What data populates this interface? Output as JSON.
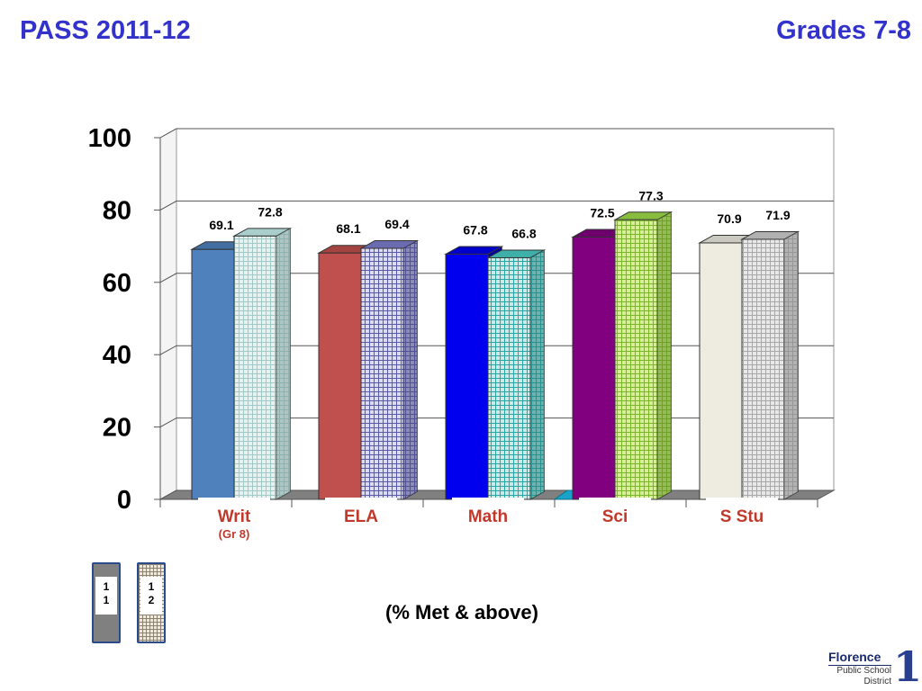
{
  "header": {
    "title_left": "PASS 2011-12",
    "title_right": "Grades 7-8"
  },
  "chart_data": {
    "type": "bar",
    "categories": [
      "Writ",
      "ELA",
      "Math",
      "Sci",
      "S Stu"
    ],
    "category_sublabels": [
      "(Gr 8)",
      "",
      "",
      "",
      ""
    ],
    "series": [
      {
        "name": "11",
        "values": [
          69.1,
          68.1,
          67.8,
          72.5,
          70.9
        ]
      },
      {
        "name": "12",
        "values": [
          72.8,
          69.4,
          66.8,
          77.3,
          71.9
        ]
      }
    ],
    "series_colors": [
      [
        "#4f81bd",
        "#c0504d",
        "#0000ee",
        "#800080",
        "#eeece1"
      ],
      [
        "#e6f2f0",
        "#dcdcf0",
        "#cfe8e8",
        "#d8ee9a",
        "#e8e8e8"
      ]
    ],
    "series_grid_colors": [
      "#9fc8c6",
      "#5a5aa8",
      "#2aa6a0",
      "#7ab52a",
      "#a8a8a8"
    ],
    "yticks": [
      0,
      20,
      40,
      60,
      80,
      100
    ],
    "ylim": [
      0,
      100
    ],
    "grid": true,
    "legend": "bottom-left",
    "category_label_color": "#c0392b"
  },
  "legend": {
    "items": [
      {
        "line1": "1",
        "line2": "1"
      },
      {
        "line1": "1",
        "line2": "2"
      }
    ]
  },
  "caption": "(% Met & above)",
  "logo": {
    "name": "Florence",
    "line1": "Public School",
    "line2": "District",
    "number": "1"
  }
}
